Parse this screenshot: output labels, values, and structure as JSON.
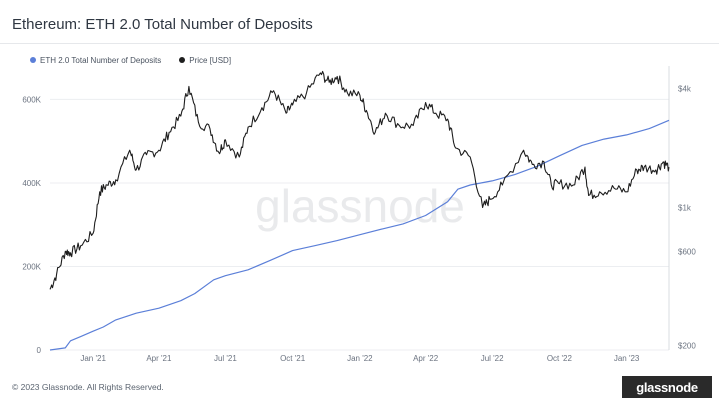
{
  "title": "Ethereum: ETH 2.0 Total Number of Deposits",
  "legend": [
    {
      "label": "ETH 2.0 Total Number of Deposits",
      "color": "#5b7fd8"
    },
    {
      "label": "Price [USD]",
      "color": "#1e1e1e"
    }
  ],
  "watermark": "glassnode",
  "footer": {
    "copyright": "© 2023 Glassnode. All Rights Reserved.",
    "logo": "glassnode"
  },
  "colors": {
    "deposits": "#5b7fd8",
    "price": "#1e1e1e",
    "grid": "#eceef1",
    "axis_text": "#6b7380"
  },
  "chart_data": {
    "type": "line",
    "title": "Ethereum: ETH 2.0 Total Number of Deposits",
    "xlabel": "",
    "x_range": [
      "2020-11-03",
      "2023-02-28"
    ],
    "x_ticks": [
      {
        "label": "Jan '21",
        "date": "2021-01-01"
      },
      {
        "label": "Apr '21",
        "date": "2021-04-01"
      },
      {
        "label": "Jul '21",
        "date": "2021-07-01"
      },
      {
        "label": "Oct '21",
        "date": "2021-10-01"
      },
      {
        "label": "Jan '22",
        "date": "2022-01-01"
      },
      {
        "label": "Apr '22",
        "date": "2022-04-01"
      },
      {
        "label": "Jul '22",
        "date": "2022-07-01"
      },
      {
        "label": "Oct '22",
        "date": "2022-10-01"
      },
      {
        "label": "Jan '23",
        "date": "2023-01-01"
      }
    ],
    "y_left": {
      "label": "",
      "ylim": [
        0,
        680000
      ],
      "ticks": [
        {
          "label": "0",
          "value": 0
        },
        {
          "label": "200K",
          "value": 200000
        },
        {
          "label": "400K",
          "value": 400000
        },
        {
          "label": "600K",
          "value": 600000
        }
      ]
    },
    "y_right": {
      "label": "",
      "scale": "log",
      "ylim": [
        190,
        5200
      ],
      "ticks": [
        {
          "label": "$200",
          "value": 200
        },
        {
          "label": "$600",
          "value": 600
        },
        {
          "label": "$1k",
          "value": 1000
        },
        {
          "label": "$4k",
          "value": 4000
        }
      ]
    },
    "series": [
      {
        "name": "ETH 2.0 Total Number of Deposits",
        "axis": "left",
        "color": "#5b7fd8",
        "points": [
          [
            "2020-11-03",
            0
          ],
          [
            "2020-11-24",
            5000
          ],
          [
            "2020-12-01",
            22000
          ],
          [
            "2020-12-15",
            32000
          ],
          [
            "2021-01-01",
            45000
          ],
          [
            "2021-01-15",
            55000
          ],
          [
            "2021-02-01",
            72000
          ],
          [
            "2021-02-15",
            80000
          ],
          [
            "2021-03-01",
            88000
          ],
          [
            "2021-04-01",
            100000
          ],
          [
            "2021-05-01",
            118000
          ],
          [
            "2021-05-20",
            135000
          ],
          [
            "2021-06-15",
            168000
          ],
          [
            "2021-07-01",
            178000
          ],
          [
            "2021-08-01",
            192000
          ],
          [
            "2021-09-01",
            215000
          ],
          [
            "2021-10-01",
            238000
          ],
          [
            "2021-11-01",
            250000
          ],
          [
            "2021-12-01",
            262000
          ],
          [
            "2022-01-01",
            276000
          ],
          [
            "2022-02-01",
            290000
          ],
          [
            "2022-03-01",
            302000
          ],
          [
            "2022-04-01",
            322000
          ],
          [
            "2022-05-01",
            355000
          ],
          [
            "2022-05-15",
            385000
          ],
          [
            "2022-06-01",
            395000
          ],
          [
            "2022-07-01",
            405000
          ],
          [
            "2022-08-01",
            420000
          ],
          [
            "2022-09-01",
            440000
          ],
          [
            "2022-10-01",
            465000
          ],
          [
            "2022-11-01",
            490000
          ],
          [
            "2022-12-01",
            505000
          ],
          [
            "2023-01-01",
            515000
          ],
          [
            "2023-02-01",
            530000
          ],
          [
            "2023-02-28",
            550000
          ]
        ]
      },
      {
        "name": "Price [USD]",
        "axis": "right",
        "color": "#1e1e1e",
        "points": [
          [
            "2020-11-03",
            385
          ],
          [
            "2020-11-12",
            460
          ],
          [
            "2020-11-24",
            600
          ],
          [
            "2020-12-01",
            590
          ],
          [
            "2020-12-15",
            640
          ],
          [
            "2021-01-01",
            740
          ],
          [
            "2021-01-10",
            1200
          ],
          [
            "2021-01-20",
            1300
          ],
          [
            "2021-02-01",
            1380
          ],
          [
            "2021-02-20",
            1950
          ],
          [
            "2021-03-01",
            1550
          ],
          [
            "2021-03-15",
            1850
          ],
          [
            "2021-04-01",
            1950
          ],
          [
            "2021-04-15",
            2400
          ],
          [
            "2021-05-01",
            2900
          ],
          [
            "2021-05-12",
            4100
          ],
          [
            "2021-05-25",
            2700
          ],
          [
            "2021-06-10",
            2500
          ],
          [
            "2021-06-22",
            1900
          ],
          [
            "2021-07-01",
            2200
          ],
          [
            "2021-07-20",
            1800
          ],
          [
            "2021-08-01",
            2550
          ],
          [
            "2021-08-20",
            3200
          ],
          [
            "2021-09-05",
            3900
          ],
          [
            "2021-09-22",
            3000
          ],
          [
            "2021-10-01",
            3300
          ],
          [
            "2021-10-20",
            3800
          ],
          [
            "2021-11-08",
            4800
          ],
          [
            "2021-11-20",
            4300
          ],
          [
            "2021-12-01",
            4600
          ],
          [
            "2021-12-15",
            3800
          ],
          [
            "2022-01-01",
            3700
          ],
          [
            "2022-01-10",
            3100
          ],
          [
            "2022-01-22",
            2400
          ],
          [
            "2022-02-05",
            3000
          ],
          [
            "2022-02-24",
            2600
          ],
          [
            "2022-03-15",
            2600
          ],
          [
            "2022-04-01",
            3400
          ],
          [
            "2022-04-15",
            3000
          ],
          [
            "2022-05-01",
            2800
          ],
          [
            "2022-05-12",
            2000
          ],
          [
            "2022-06-01",
            1800
          ],
          [
            "2022-06-18",
            1000
          ],
          [
            "2022-06-28",
            1100
          ],
          [
            "2022-07-15",
            1300
          ],
          [
            "2022-08-13",
            1950
          ],
          [
            "2022-08-25",
            1650
          ],
          [
            "2022-09-10",
            1700
          ],
          [
            "2022-09-20",
            1300
          ],
          [
            "2022-10-01",
            1320
          ],
          [
            "2022-10-20",
            1300
          ],
          [
            "2022-11-05",
            1600
          ],
          [
            "2022-11-10",
            1150
          ],
          [
            "2022-11-25",
            1200
          ],
          [
            "2022-12-15",
            1250
          ],
          [
            "2023-01-01",
            1200
          ],
          [
            "2023-01-15",
            1550
          ],
          [
            "2023-01-25",
            1600
          ],
          [
            "2023-02-10",
            1550
          ],
          [
            "2023-02-20",
            1700
          ],
          [
            "2023-02-28",
            1600
          ]
        ]
      }
    ],
    "annotations": [
      "glassnode"
    ]
  }
}
